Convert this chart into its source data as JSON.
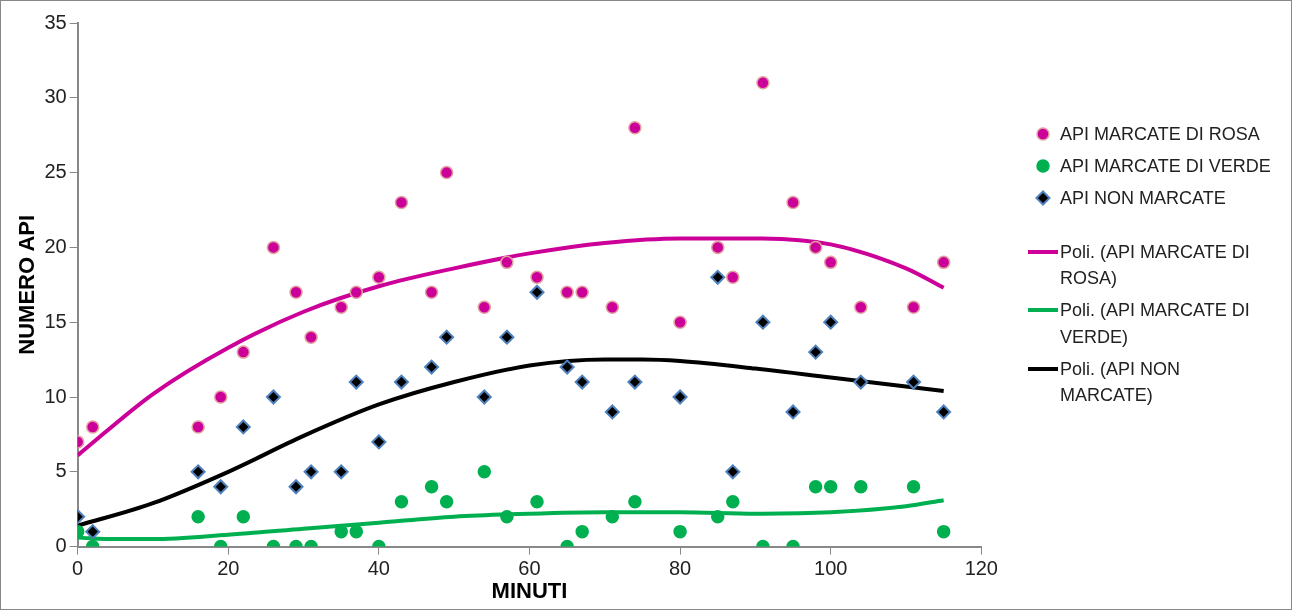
{
  "chart_data": {
    "type": "scatter",
    "xlabel": "MINUTI",
    "ylabel": "NUMERO API",
    "xlim": [
      0,
      120
    ],
    "xticks": [
      0,
      20,
      40,
      60,
      80,
      100,
      120
    ],
    "ylim": [
      0,
      35
    ],
    "yticks": [
      0,
      5,
      10,
      15,
      20,
      25,
      30,
      35
    ],
    "grid": false,
    "legend": "right",
    "x": [
      0,
      2,
      16,
      19,
      22,
      26,
      29,
      31,
      35,
      37,
      40,
      43,
      47,
      49,
      54,
      57,
      61,
      65,
      67,
      71,
      74,
      80,
      85,
      87,
      91,
      95,
      98,
      100,
      104,
      111,
      115
    ],
    "series": [
      {
        "name": "API MARCATE DI ROSA",
        "type": "scatter",
        "marker": "circle",
        "color": "#cc0099",
        "values": [
          7,
          8,
          8,
          10,
          13,
          20,
          17,
          14,
          16,
          17,
          18,
          23,
          17,
          25,
          16,
          19,
          18,
          17,
          17,
          16,
          28,
          15,
          20,
          18,
          31,
          23,
          20,
          19,
          16,
          16,
          19
        ]
      },
      {
        "name": "API MARCATE DI VERDE",
        "type": "scatter",
        "marker": "circle",
        "color": "#00b050",
        "values": [
          1,
          0,
          2,
          0,
          2,
          0,
          0,
          0,
          1,
          1,
          0,
          3,
          4,
          3,
          5,
          2,
          3,
          0,
          1,
          2,
          3,
          1,
          2,
          3,
          0,
          0,
          4,
          4,
          4,
          4,
          1
        ]
      },
      {
        "name": "API NON MARCATE",
        "type": "scatter",
        "marker": "diamond",
        "color": "#000000",
        "values": [
          2,
          1,
          5,
          4,
          8,
          10,
          4,
          5,
          5,
          11,
          7,
          11,
          12,
          14,
          10,
          14,
          17,
          12,
          11,
          9,
          11,
          10,
          18,
          5,
          15,
          9,
          13,
          15,
          11,
          11,
          9
        ]
      },
      {
        "name": "Poli. (API MARCATE DI ROSA)",
        "type": "line",
        "marker": "none",
        "color": "#cc0099",
        "x": [
          0,
          10,
          20,
          30,
          40,
          50,
          60,
          70,
          80,
          90,
          100,
          110,
          115
        ],
        "values": [
          6.1,
          10.2,
          13.3,
          15.7,
          17.4,
          18.6,
          19.6,
          20.3,
          20.6,
          20.6,
          20.2,
          18.6,
          17.3
        ]
      },
      {
        "name": "Poli. (API MARCATE DI VERDE)",
        "type": "line",
        "marker": "none",
        "color": "#00b050",
        "x": [
          0,
          5,
          10,
          20,
          30,
          40,
          50,
          60,
          70,
          80,
          90,
          100,
          110,
          115
        ],
        "values": [
          0.6,
          0.5,
          0.5,
          0.8,
          1.2,
          1.6,
          2.0,
          2.2,
          2.3,
          2.3,
          2.2,
          2.3,
          2.7,
          3.1
        ]
      },
      {
        "name": "Poli. (API NON MARCATE)",
        "type": "line",
        "marker": "none",
        "color": "#000000",
        "x": [
          0,
          10,
          20,
          30,
          40,
          50,
          60,
          70,
          75,
          80,
          90,
          100,
          110,
          115
        ],
        "values": [
          1.4,
          2.9,
          5.0,
          7.4,
          9.5,
          11.0,
          12.1,
          12.5,
          12.5,
          12.4,
          11.9,
          11.3,
          10.7,
          10.4
        ]
      }
    ]
  }
}
